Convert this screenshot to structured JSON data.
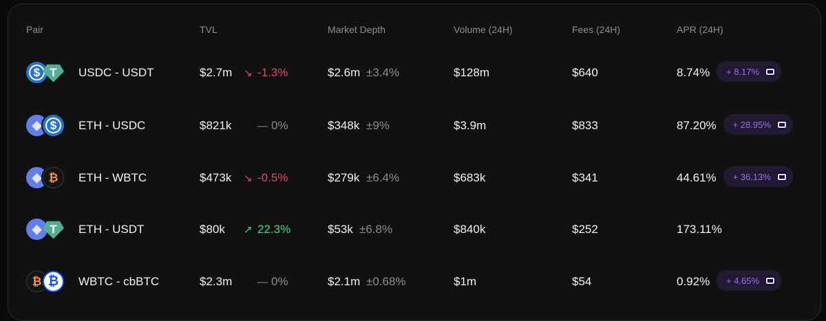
{
  "headers": {
    "pair": "Pair",
    "tvl": "TVL",
    "depth": "Market Depth",
    "volume": "Volume (24H)",
    "fees": "Fees (24H)",
    "apr": "APR (24H)"
  },
  "colors": {
    "negative": "#e0456a",
    "positive": "#3ddc84",
    "neutral": "#8d8d8d",
    "badge": "#9b6cf0"
  },
  "rows": [
    {
      "tokens": [
        "usdc-icon",
        "usdt-icon"
      ],
      "pair": "USDC - USDT",
      "tvl": "$2.7m",
      "tvl_change": "-1.3%",
      "trend": "down",
      "trend_glyph": "↘",
      "depth": "$2.6m",
      "depth_range": "±3.4%",
      "volume": "$128m",
      "fees": "$640",
      "apr": "8.74%",
      "bonus": "+ 8.17%"
    },
    {
      "tokens": [
        "eth-icon",
        "usdc-icon"
      ],
      "pair": "ETH - USDC",
      "tvl": "$821k",
      "tvl_change": "0%",
      "trend": "flat",
      "trend_glyph": "—",
      "depth": "$348k",
      "depth_range": "±9%",
      "volume": "$3.9m",
      "fees": "$833",
      "apr": "87.20%",
      "bonus": "+ 28.95%"
    },
    {
      "tokens": [
        "eth-icon",
        "wbtc-icon"
      ],
      "pair": "ETH - WBTC",
      "tvl": "$473k",
      "tvl_change": "-0.5%",
      "trend": "down",
      "trend_glyph": "↘",
      "depth": "$279k",
      "depth_range": "±6.4%",
      "volume": "$683k",
      "fees": "$341",
      "apr": "44.61%",
      "bonus": "+ 36.13%"
    },
    {
      "tokens": [
        "eth-icon",
        "usdt-icon"
      ],
      "pair": "ETH - USDT",
      "tvl": "$80k",
      "tvl_change": "22.3%",
      "trend": "up",
      "trend_glyph": "↗",
      "depth": "$53k",
      "depth_range": "±6.8%",
      "volume": "$840k",
      "fees": "$252",
      "apr": "173.11%",
      "bonus": null
    },
    {
      "tokens": [
        "wbtc-icon",
        "cbbtc-icon"
      ],
      "pair": "WBTC - cbBTC",
      "tvl": "$2.3m",
      "tvl_change": "0%",
      "trend": "flat",
      "trend_glyph": "—",
      "depth": "$2.1m",
      "depth_range": "±0.68%",
      "volume": "$1m",
      "fees": "$54",
      "apr": "0.92%",
      "bonus": "+ 4.65%"
    }
  ]
}
